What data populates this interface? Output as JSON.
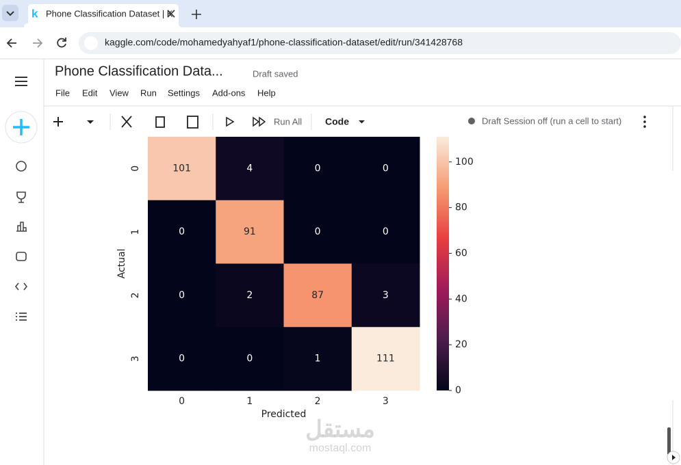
{
  "browser": {
    "tab_title": "Phone Classification Dataset | K",
    "url": "kaggle.com/code/mohamedyahyaf1/phone-classification-dataset/edit/run/341428768"
  },
  "notebook": {
    "title": "Phone Classification Data...",
    "status": "Draft saved",
    "menu": [
      "File",
      "Edit",
      "View",
      "Run",
      "Settings",
      "Add-ons",
      "Help"
    ],
    "toolbar": {
      "run_all": "Run All",
      "cell_type": "Code",
      "session": "Draft Session off (run a cell to start)"
    }
  },
  "chart_data": {
    "type": "heatmap",
    "x_label": "Predicted",
    "y_label": "Actual",
    "x_categories": [
      "0",
      "1",
      "2",
      "3"
    ],
    "y_categories": [
      "0",
      "1",
      "2",
      "3"
    ],
    "values": [
      [
        101,
        4,
        0,
        0
      ],
      [
        0,
        91,
        0,
        0
      ],
      [
        0,
        2,
        87,
        3
      ],
      [
        0,
        0,
        1,
        111
      ]
    ],
    "colorbar_lim": [
      0,
      111
    ],
    "colorbar_ticks": [
      0,
      20,
      40,
      60,
      80,
      100
    ],
    "colors": [
      "#03051a",
      "#4c1d4b",
      "#a11a5b",
      "#e83f3f",
      "#f69c73",
      "#faebdd"
    ]
  },
  "watermark": {
    "arabic": "مستقل",
    "latin": "mostaql.com"
  }
}
